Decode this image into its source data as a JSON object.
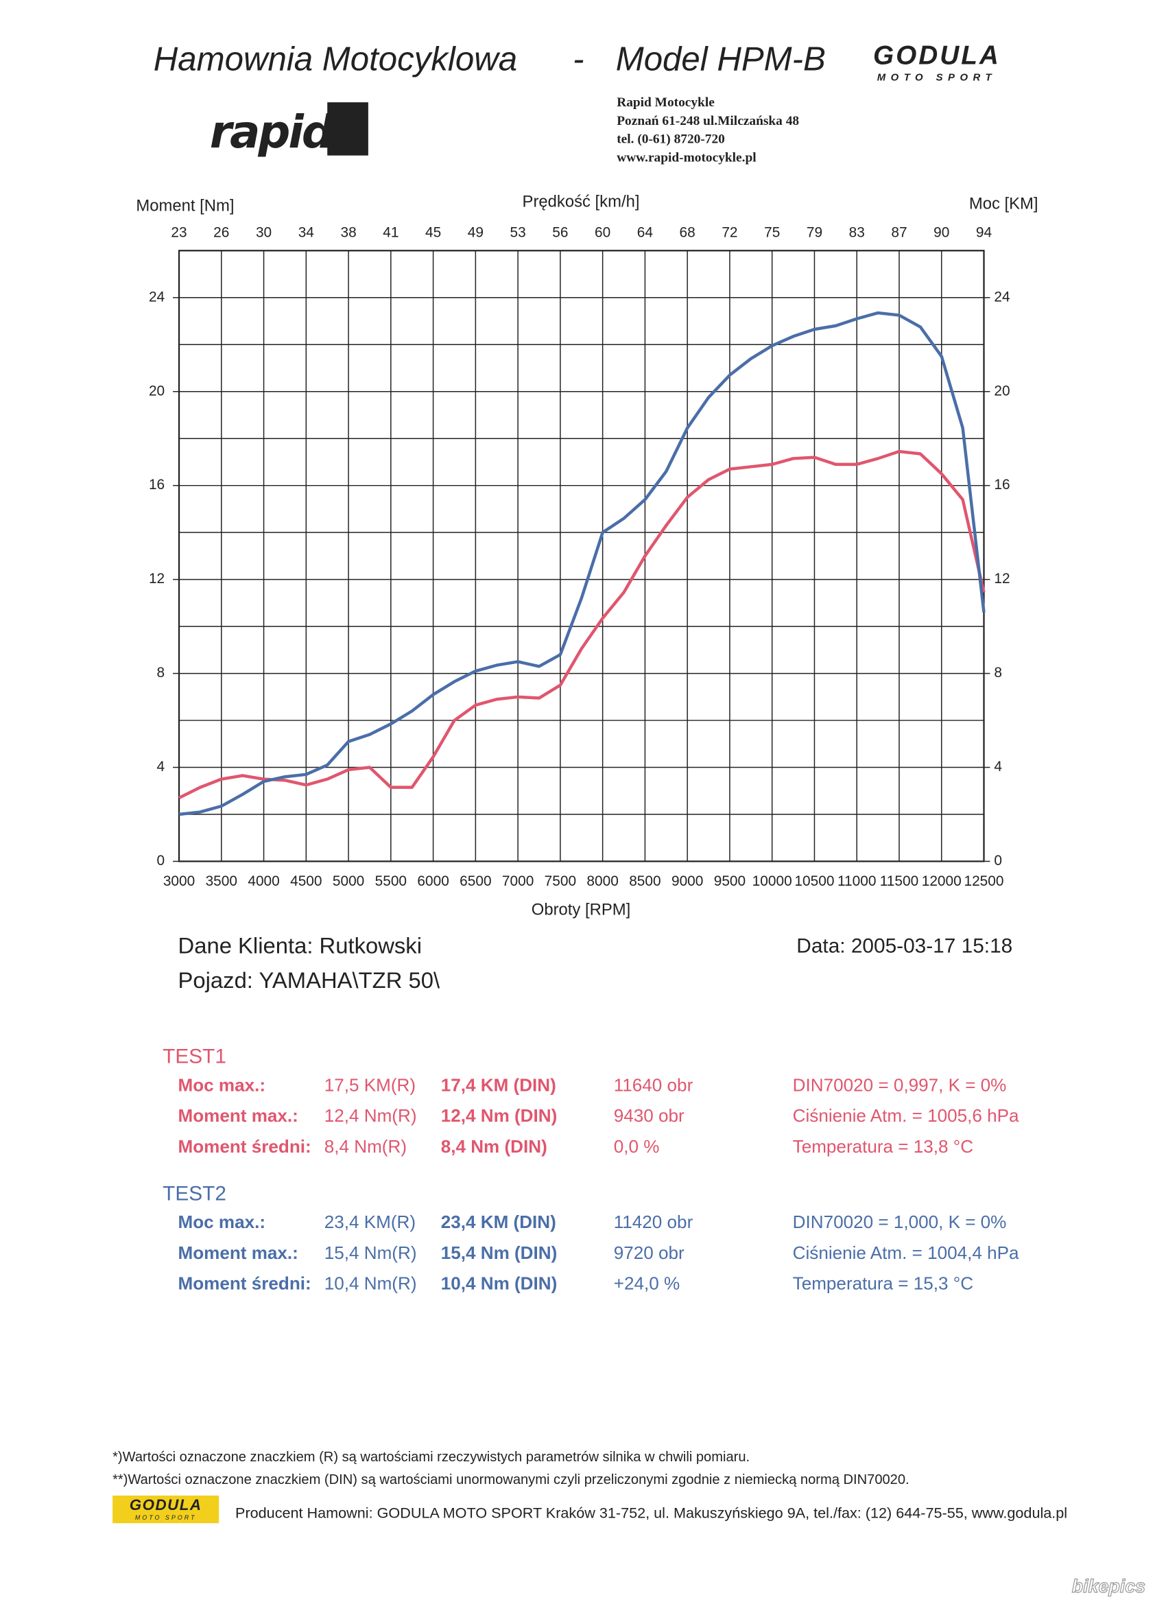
{
  "header": {
    "title_left": "Hamownia  Motocyklowa",
    "title_dash": "-",
    "title_right": "Model HPM-B",
    "logo_godula": "GODULA",
    "logo_moto_sport": "MOTO SPORT",
    "logo_rapid": "rapid",
    "address": [
      "Rapid Motocykle",
      "Poznań 61-248 ul.Milczańska 48",
      "tel. (0-61) 8720-720",
      "www.rapid-motocykle.pl"
    ]
  },
  "chart_data": {
    "type": "line",
    "ylabel": "Moment [Nm]",
    "y2label": "Moc [KM]",
    "xlabel": "Obroty [RPM]",
    "top_axis": {
      "label": "Prędkość [km/h]",
      "ticks": [
        23,
        26,
        30,
        34,
        38,
        41,
        45,
        49,
        53,
        56,
        60,
        64,
        68,
        72,
        75,
        79,
        83,
        87,
        90,
        94
      ]
    },
    "xlim": [
      3000,
      12500
    ],
    "xticks": [
      3000,
      3500,
      4000,
      4500,
      5000,
      5500,
      6000,
      6500,
      7000,
      7500,
      8000,
      8500,
      9000,
      9500,
      10000,
      10500,
      11000,
      11500,
      12000,
      12500
    ],
    "ylim": [
      0,
      26
    ],
    "yticks": [
      0,
      4,
      8,
      12,
      16,
      20,
      24
    ],
    "y2lim": [
      0,
      26
    ],
    "y2ticks": [
      0,
      4,
      8,
      12,
      16,
      20,
      24
    ],
    "ygrid": [
      0,
      2,
      4,
      6,
      8,
      10,
      12,
      14,
      16,
      18,
      20,
      22,
      24,
      26
    ],
    "grid": true,
    "x": [
      3000,
      3250,
      3500,
      3750,
      4000,
      4250,
      4500,
      4750,
      5000,
      5250,
      5500,
      5750,
      6000,
      6250,
      6500,
      6750,
      7000,
      7250,
      7500,
      7750,
      8000,
      8250,
      8500,
      8750,
      9000,
      9250,
      9500,
      9750,
      10000,
      10250,
      10500,
      10750,
      11000,
      11250,
      11500,
      11750,
      12000,
      12250,
      12500
    ],
    "series": [
      {
        "name": "TEST1",
        "color": "#e0566e",
        "values": [
          2.7,
          3.15,
          3.5,
          3.65,
          3.5,
          3.45,
          3.25,
          3.5,
          3.9,
          4.0,
          3.15,
          3.15,
          4.45,
          6.0,
          6.65,
          6.9,
          7.0,
          6.95,
          7.5,
          9.05,
          10.35,
          11.45,
          13.0,
          14.3,
          15.5,
          16.25,
          16.7,
          16.8,
          16.9,
          17.15,
          17.2,
          16.9,
          16.9,
          17.15,
          17.45,
          17.35,
          16.5,
          15.4,
          11.45
        ]
      },
      {
        "name": "TEST2",
        "color": "#4a6ea8",
        "values": [
          2.0,
          2.1,
          2.35,
          2.85,
          3.4,
          3.6,
          3.7,
          4.1,
          5.1,
          5.4,
          5.85,
          6.4,
          7.1,
          7.65,
          8.1,
          8.35,
          8.5,
          8.3,
          8.8,
          11.2,
          14.0,
          14.6,
          15.4,
          16.6,
          18.45,
          19.75,
          20.7,
          21.4,
          21.95,
          22.35,
          22.65,
          22.8,
          23.1,
          23.35,
          23.25,
          22.75,
          21.5,
          18.45,
          10.6
        ]
      }
    ]
  },
  "client": {
    "name": "Dane Klienta: Rutkowski",
    "vehicle": "Pojazd: YAMAHA\\TZR 50\\",
    "date": "Data: 2005-03-17   15:18"
  },
  "tests": [
    {
      "rows": [
        [
          "Moc max.:",
          "17,5 KM(R)",
          "17,4 KM (DIN)",
          "11640 obr",
          "DIN70020 = 0,997, K = 0%"
        ],
        [
          "Moment max.:",
          "12,4 Nm(R)",
          "12,4 Nm (DIN)",
          "9430 obr",
          "Ciśnienie Atm. = 1005,6 hPa"
        ],
        [
          "Moment średni:",
          "8,4 Nm(R)",
          "8,4 Nm (DIN)",
          "0,0 %",
          "Temperatura = 13,8 °C"
        ]
      ]
    },
    {
      "rows": [
        [
          "Moc max.:",
          "23,4 KM(R)",
          "23,4 KM (DIN)",
          "11420 obr",
          "DIN70020 = 1,000, K = 0%"
        ],
        [
          "Moment max.:",
          "15,4 Nm(R)",
          "15,4 Nm (DIN)",
          "9720 obr",
          "Ciśnienie Atm. = 1004,4 hPa"
        ],
        [
          "Moment średni:",
          "10,4 Nm(R)",
          "10,4 Nm (DIN)",
          "+24,0 %",
          "Temperatura = 15,3 °C"
        ]
      ]
    }
  ],
  "footer": {
    "notes": [
      "*)Wartości oznaczone znaczkiem (R) są wartościami rzeczywistych parametrów silnika w chwili pomiaru.",
      "**)Wartości oznaczone znaczkiem (DIN) są wartościami unormowanymi czyli przeliczonymi zgodnie z niemiecką normą DIN70020."
    ],
    "logo_godula": "GODULA",
    "logo_moto_sport": "MOTO SPORT",
    "producer": "Producent Hamowni: GODULA MOTO SPORT Kraków 31-752, ul. Makuszyńskiego 9A, tel./fax: (12) 644-75-55, www.godula.pl",
    "watermark": "bikepics"
  }
}
